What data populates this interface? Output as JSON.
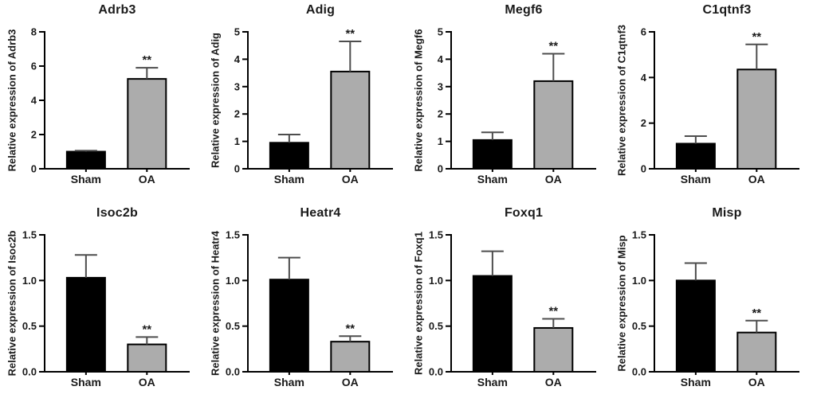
{
  "figure": {
    "background": "#ffffff",
    "group_labels": [
      "Sham",
      "OA"
    ],
    "significance_marker": "**"
  },
  "style": {
    "bar_colors": [
      "#000000",
      "#acacac"
    ],
    "bar_border": "#000000",
    "error_color": "#4d4d4d",
    "axis_color": "#000000",
    "text_color": "#1a1a1a"
  },
  "chart_data": [
    {
      "type": "bar",
      "title": "Adrb3",
      "ylabel": "Relative expression of Adrb3",
      "categories": [
        "Sham",
        "OA"
      ],
      "values": [
        1.0,
        5.25
      ],
      "errors": [
        0.06,
        0.65
      ],
      "significance": [
        "",
        "**"
      ],
      "ylim": [
        0,
        8
      ],
      "yticks": [
        0,
        2,
        4,
        6,
        8
      ],
      "ytick_labels": [
        "0",
        "2",
        "4",
        "6",
        "8"
      ]
    },
    {
      "type": "bar",
      "title": "Adig",
      "ylabel": "Relative expression of Adig",
      "categories": [
        "Sham",
        "OA"
      ],
      "values": [
        0.95,
        3.55
      ],
      "errors": [
        0.3,
        1.1
      ],
      "significance": [
        "",
        "**"
      ],
      "ylim": [
        0,
        5
      ],
      "yticks": [
        0,
        1,
        2,
        3,
        4,
        5
      ],
      "ytick_labels": [
        "0",
        "1",
        "2",
        "3",
        "4",
        "5"
      ]
    },
    {
      "type": "bar",
      "title": "Megf6",
      "ylabel": "Relative expression of Megf6",
      "categories": [
        "Sham",
        "OA"
      ],
      "values": [
        1.05,
        3.2
      ],
      "errors": [
        0.28,
        1.0
      ],
      "significance": [
        "",
        "**"
      ],
      "ylim": [
        0,
        5
      ],
      "yticks": [
        0,
        1,
        2,
        3,
        4,
        5
      ],
      "ytick_labels": [
        "0",
        "1",
        "2",
        "3",
        "4",
        "5"
      ]
    },
    {
      "type": "bar",
      "title": "C1qtnf3",
      "ylabel": "Relative expression of C1qtnf3",
      "categories": [
        "Sham",
        "OA"
      ],
      "values": [
        1.1,
        4.35
      ],
      "errors": [
        0.33,
        1.1
      ],
      "significance": [
        "",
        "**"
      ],
      "ylim": [
        0,
        6
      ],
      "yticks": [
        0,
        2,
        4,
        6
      ],
      "ytick_labels": [
        "0",
        "2",
        "4",
        "6"
      ]
    },
    {
      "type": "bar",
      "title": "Isoc2b",
      "ylabel": "Relative expression of Isoc2b",
      "categories": [
        "Sham",
        "OA"
      ],
      "values": [
        1.03,
        0.3
      ],
      "errors": [
        0.25,
        0.08
      ],
      "significance": [
        "",
        "**"
      ],
      "ylim": [
        0,
        1.5
      ],
      "yticks": [
        0,
        0.5,
        1.0,
        1.5
      ],
      "ytick_labels": [
        "0.0",
        "0.5",
        "1.0",
        "1.5"
      ]
    },
    {
      "type": "bar",
      "title": "Heatr4",
      "ylabel": "Relative expression of Heatr4",
      "categories": [
        "Sham",
        "OA"
      ],
      "values": [
        1.01,
        0.33
      ],
      "errors": [
        0.24,
        0.06
      ],
      "significance": [
        "",
        "**"
      ],
      "ylim": [
        0,
        1.5
      ],
      "yticks": [
        0,
        0.5,
        1.0,
        1.5
      ],
      "ytick_labels": [
        "0.0",
        "0.5",
        "1.0",
        "1.5"
      ]
    },
    {
      "type": "bar",
      "title": "Foxq1",
      "ylabel": "Relative expression of Foxq1",
      "categories": [
        "Sham",
        "OA"
      ],
      "values": [
        1.05,
        0.48
      ],
      "errors": [
        0.27,
        0.1
      ],
      "significance": [
        "",
        "**"
      ],
      "ylim": [
        0,
        1.5
      ],
      "yticks": [
        0,
        0.5,
        1.0,
        1.5
      ],
      "ytick_labels": [
        "0.0",
        "0.5",
        "1.0",
        "1.5"
      ]
    },
    {
      "type": "bar",
      "title": "Misp",
      "ylabel": "Relative expression of Misp",
      "categories": [
        "Sham",
        "OA"
      ],
      "values": [
        1.0,
        0.43
      ],
      "errors": [
        0.19,
        0.13
      ],
      "significance": [
        "",
        "**"
      ],
      "ylim": [
        0,
        1.5
      ],
      "yticks": [
        0,
        0.5,
        1.0,
        1.5
      ],
      "ytick_labels": [
        "0.0",
        "0.5",
        "1.0",
        "1.5"
      ]
    }
  ]
}
